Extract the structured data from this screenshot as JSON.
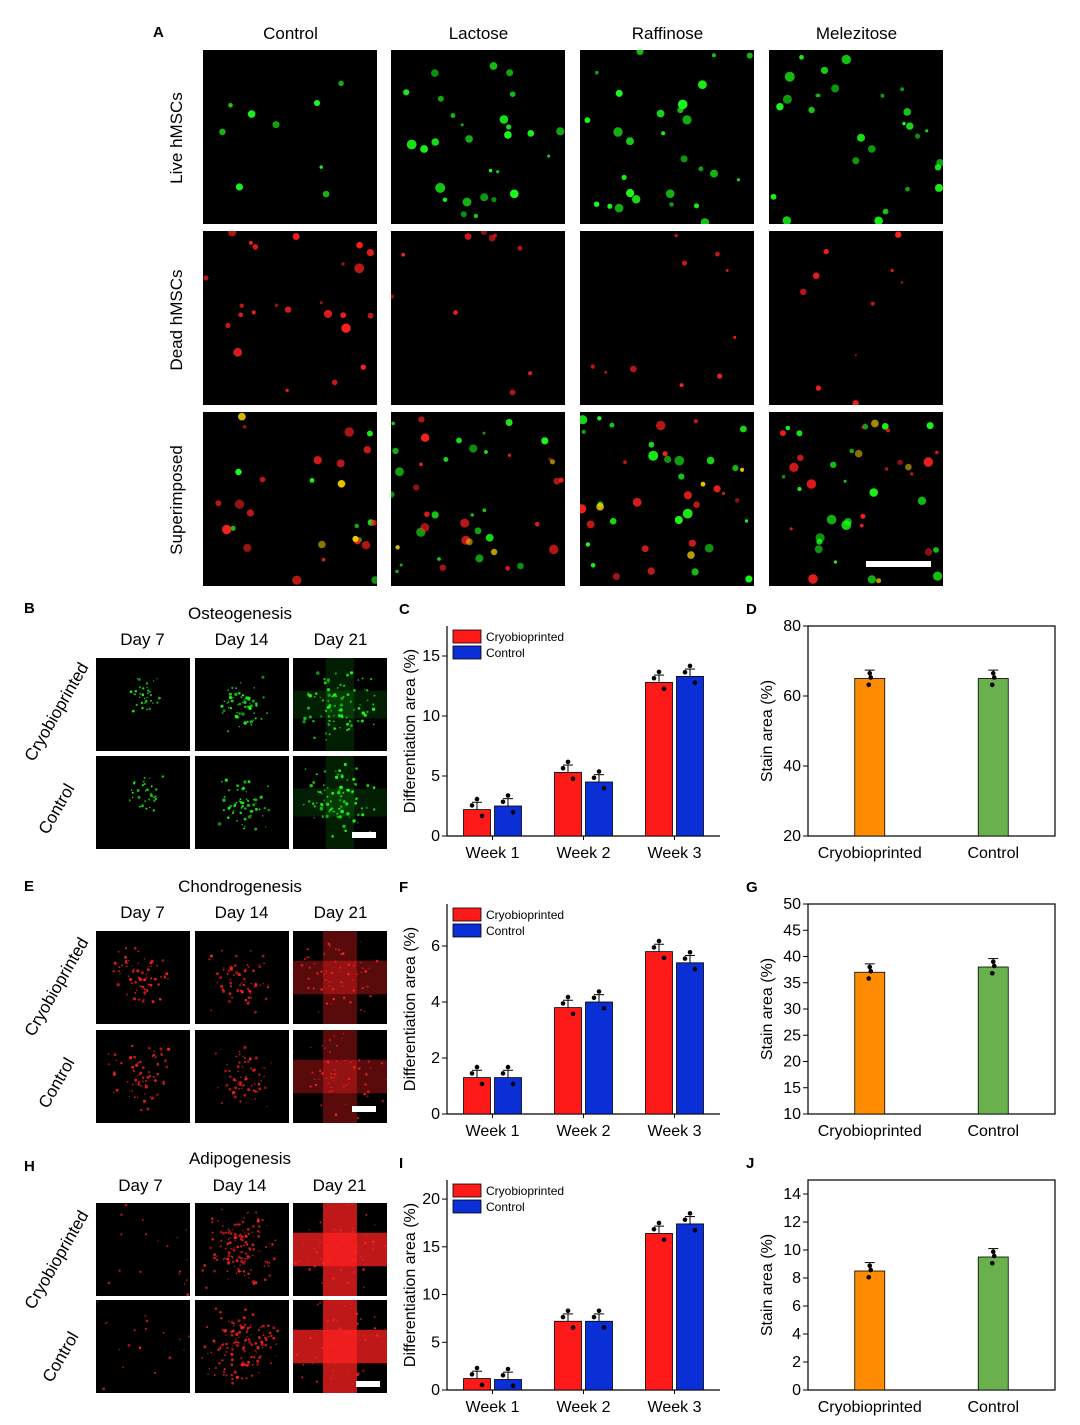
{
  "panelA": {
    "letter": "A",
    "columns": [
      "Control",
      "Lactose",
      "Raffinose",
      "Melezitose"
    ],
    "rows": [
      "Live hMSCs",
      "Dead hMSCs",
      "Superimposed"
    ]
  },
  "panelB": {
    "letter": "B",
    "title": "Osteogenesis",
    "days": [
      "Day 7",
      "Day 14",
      "Day 21"
    ],
    "rows": [
      "Cryobioprinted",
      "Control"
    ]
  },
  "panelE": {
    "letter": "E",
    "title": "Chondrogenesis",
    "days": [
      "Day 7",
      "Day 14",
      "Day 21"
    ],
    "rows": [
      "Cryobioprinted",
      "Control"
    ]
  },
  "panelH": {
    "letter": "H",
    "title": "Adipogenesis",
    "days": [
      "Day 7",
      "Day 14",
      "Day 21"
    ],
    "rows": [
      "Cryobioprinted",
      "Control"
    ]
  },
  "colors": {
    "cryo_bar": "#ff1a1a",
    "control_bar": "#0a2fd6",
    "stain_cryo": "#ff8c00",
    "stain_control": "#6ab04c",
    "live": "#1aff1a",
    "dead": "#ff2020"
  },
  "chart_data": [
    {
      "id": "C",
      "letter": "C",
      "type": "bar",
      "categories": [
        "Week 1",
        "Week 2",
        "Week 3"
      ],
      "series": [
        {
          "name": "Cryobioprinted",
          "values": [
            2.2,
            5.3,
            12.8
          ]
        },
        {
          "name": "Control",
          "values": [
            2.5,
            4.5,
            13.3
          ]
        }
      ],
      "ylabel": "Differentiation area (%)",
      "ylim": [
        0,
        17.5
      ],
      "yticks": [
        0,
        5,
        10,
        15
      ]
    },
    {
      "id": "D",
      "letter": "D",
      "type": "bar",
      "categories": [
        "Cryobioprinted",
        "Control"
      ],
      "values": [
        65,
        65
      ],
      "ylabel": "Stain area (%)",
      "ylim": [
        20,
        80
      ],
      "yticks": [
        20,
        40,
        60,
        80
      ]
    },
    {
      "id": "F",
      "letter": "F",
      "type": "bar",
      "categories": [
        "Week 1",
        "Week 2",
        "Week 3"
      ],
      "series": [
        {
          "name": "Cryobioprinted",
          "values": [
            1.3,
            3.8,
            5.8
          ]
        },
        {
          "name": "Control",
          "values": [
            1.3,
            4.0,
            5.4
          ]
        }
      ],
      "ylabel": "Differentiation area (%)",
      "ylim": [
        0,
        7.5
      ],
      "yticks": [
        0,
        2,
        4,
        6
      ]
    },
    {
      "id": "G",
      "letter": "G",
      "type": "bar",
      "categories": [
        "Cryobioprinted",
        "Control"
      ],
      "values": [
        37,
        38
      ],
      "ylabel": "Stain area (%)",
      "ylim": [
        10,
        50
      ],
      "yticks": [
        10,
        15,
        20,
        25,
        30,
        35,
        40,
        45,
        50
      ]
    },
    {
      "id": "I",
      "letter": "I",
      "type": "bar",
      "categories": [
        "Week 1",
        "Week 2",
        "Week 3"
      ],
      "series": [
        {
          "name": "Cryobioprinted",
          "values": [
            1.2,
            7.2,
            16.4
          ]
        },
        {
          "name": "Control",
          "values": [
            1.1,
            7.2,
            17.4
          ]
        }
      ],
      "ylabel": "Differentiation area (%)",
      "ylim": [
        0,
        22
      ],
      "yticks": [
        0,
        5,
        10,
        15,
        20
      ]
    },
    {
      "id": "J",
      "letter": "J",
      "type": "bar",
      "categories": [
        "Cryobioprinted",
        "Control"
      ],
      "values": [
        8.5,
        9.5
      ],
      "ylabel": "Stain area (%)",
      "ylim": [
        0,
        15
      ],
      "yticks": [
        0,
        2,
        4,
        6,
        8,
        10,
        12,
        14
      ]
    }
  ]
}
